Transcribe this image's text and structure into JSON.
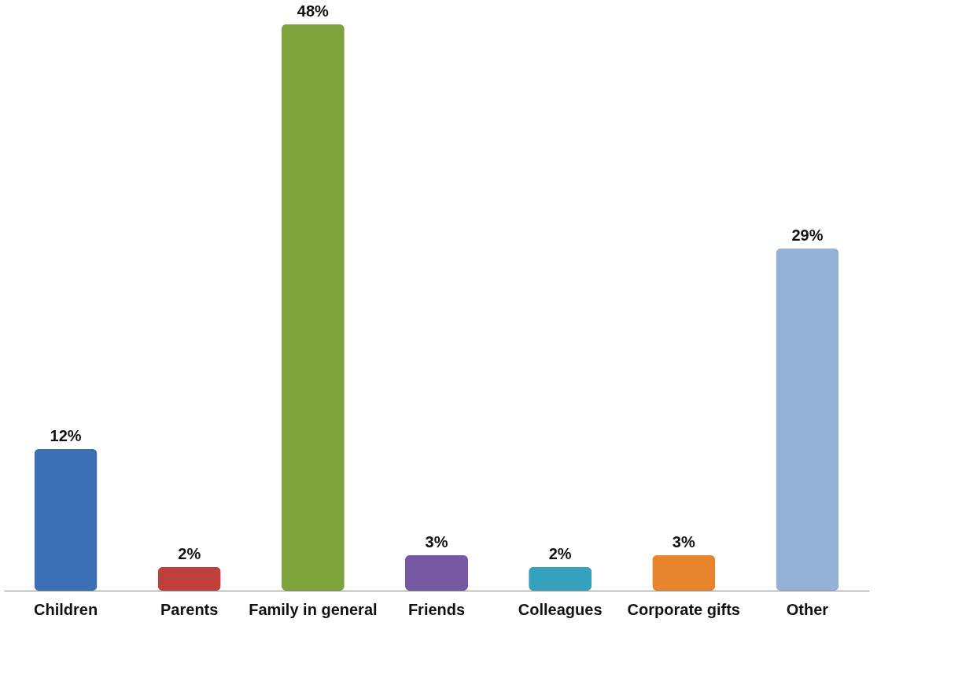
{
  "chart_data": {
    "type": "bar",
    "categories": [
      "Children",
      "Parents",
      "Family in general",
      "Friends",
      "Colleagues",
      "Corporate gifts",
      "Other"
    ],
    "values": [
      12,
      2,
      48,
      3,
      2,
      3,
      29
    ],
    "colors": [
      "#3c70b6",
      "#bf3f3a",
      "#7fa33c",
      "#7658a3",
      "#35a1bd",
      "#e8852c",
      "#94b2d8"
    ],
    "value_labels": [
      "12%",
      "2%",
      "48%",
      "3%",
      "2%",
      "3%",
      "29%"
    ],
    "grid": false,
    "legend": false
  }
}
